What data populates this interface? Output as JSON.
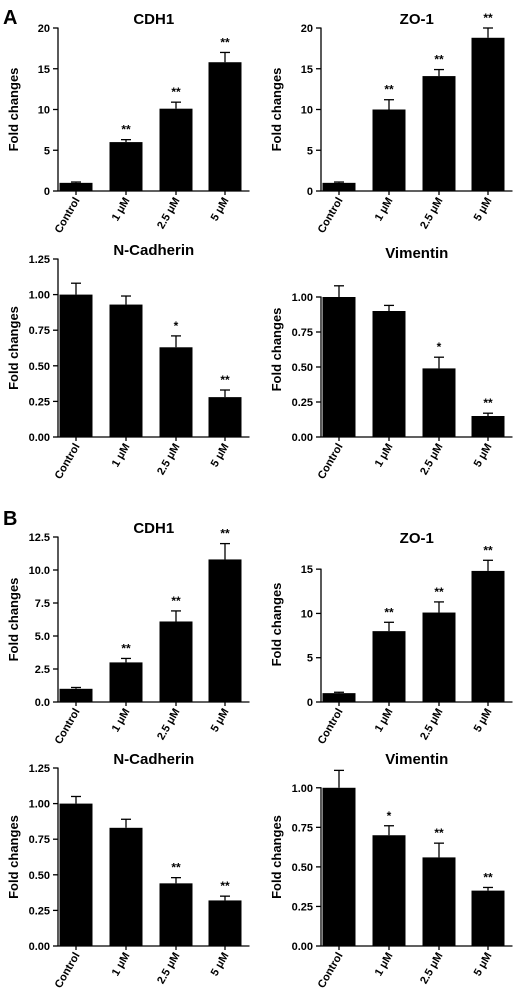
{
  "panels": [
    {
      "letter": "A"
    },
    {
      "letter": "B"
    }
  ],
  "chart_data": [
    {
      "type": "bar",
      "panel": "A",
      "title": "CDH1",
      "ylabel": "Fold changes",
      "categories": [
        "Control",
        "1 μM",
        "2.5 μM",
        "5 μM"
      ],
      "values": [
        1.0,
        6.0,
        10.1,
        15.8
      ],
      "errors": [
        0.1,
        0.3,
        0.8,
        1.2
      ],
      "significance": [
        "",
        "**",
        "**",
        "**"
      ],
      "ylim": [
        0,
        20
      ],
      "yticks": [
        "0",
        "5",
        "10",
        "15",
        "20"
      ]
    },
    {
      "type": "bar",
      "panel": "A",
      "title": "ZO-1",
      "ylabel": "Fold changes",
      "categories": [
        "Control",
        "1 μM",
        "2.5 μM",
        "5 μM"
      ],
      "values": [
        1.0,
        10.0,
        14.1,
        18.8
      ],
      "errors": [
        0.1,
        1.2,
        0.8,
        1.2
      ],
      "significance": [
        "",
        "**",
        "**",
        "**"
      ],
      "ylim": [
        0,
        20
      ],
      "yticks": [
        "0",
        "5",
        "10",
        "15",
        "20"
      ]
    },
    {
      "type": "bar",
      "panel": "A",
      "title": "N-Cadherin",
      "ylabel": "Fold changes",
      "categories": [
        "Control",
        "1 μM",
        "2.5 μM",
        "5 μM"
      ],
      "values": [
        1.0,
        0.93,
        0.63,
        0.28
      ],
      "errors": [
        0.08,
        0.06,
        0.08,
        0.05
      ],
      "significance": [
        "",
        "",
        "*",
        "**"
      ],
      "ylim": [
        0,
        1.25
      ],
      "yticks": [
        "0.00",
        "0.25",
        "0.50",
        "0.75",
        "1.00",
        "1.25"
      ]
    },
    {
      "type": "bar",
      "panel": "A",
      "title": "Vimentin",
      "ylabel": "Fold changes",
      "categories": [
        "Control",
        "1 μM",
        "2.5 μM",
        "5 μM"
      ],
      "values": [
        1.0,
        0.9,
        0.49,
        0.15
      ],
      "errors": [
        0.08,
        0.04,
        0.08,
        0.02
      ],
      "significance": [
        "",
        "",
        "*",
        "**"
      ],
      "ylim": [
        0,
        1.25
      ],
      "yticks": [
        "0.00",
        "0.25",
        "0.50",
        "0.75",
        "1.00"
      ]
    },
    {
      "type": "bar",
      "panel": "B",
      "title": "CDH1",
      "ylabel": "Fold changes",
      "categories": [
        "Control",
        "1 μM",
        "2.5 μM",
        "5 μM"
      ],
      "values": [
        1.0,
        3.0,
        6.1,
        10.8
      ],
      "errors": [
        0.1,
        0.3,
        0.8,
        1.2
      ],
      "significance": [
        "",
        "**",
        "**",
        "**"
      ],
      "ylim": [
        0,
        12.5
      ],
      "yticks": [
        "0.0",
        "2.5",
        "5.0",
        "7.5",
        "10.0",
        "12.5"
      ]
    },
    {
      "type": "bar",
      "panel": "B",
      "title": "ZO-1",
      "ylabel": "Fold changes",
      "categories": [
        "Control",
        "1 μM",
        "2.5 μM",
        "5 μM"
      ],
      "values": [
        1.0,
        8.0,
        10.1,
        14.8
      ],
      "errors": [
        0.1,
        1.0,
        1.2,
        1.2
      ],
      "significance": [
        "",
        "**",
        "**",
        "**"
      ],
      "ylim": [
        0,
        17.5
      ],
      "yticks": [
        "0",
        "5",
        "10",
        "15"
      ]
    },
    {
      "type": "bar",
      "panel": "B",
      "title": "N-Cadherin",
      "ylabel": "Fold changes",
      "categories": [
        "Control",
        "1 μM",
        "2.5 μM",
        "5 μM"
      ],
      "values": [
        1.0,
        0.83,
        0.44,
        0.32
      ],
      "errors": [
        0.05,
        0.06,
        0.04,
        0.03
      ],
      "significance": [
        "",
        "",
        "**",
        "**"
      ],
      "ylim": [
        0,
        1.25
      ],
      "yticks": [
        "0.00",
        "0.25",
        "0.50",
        "0.75",
        "1.00",
        "1.25"
      ]
    },
    {
      "type": "bar",
      "panel": "B",
      "title": "Vimentin",
      "ylabel": "Fold changes",
      "categories": [
        "Control",
        "1 μM",
        "2.5 μM",
        "5 μM"
      ],
      "values": [
        1.0,
        0.7,
        0.56,
        0.35
      ],
      "errors": [
        0.11,
        0.06,
        0.09,
        0.02
      ],
      "significance": [
        "",
        "*",
        "**",
        "**"
      ],
      "ylim": [
        0,
        1.125
      ],
      "yticks": [
        "0.00",
        "0.25",
        "0.50",
        "0.75",
        "1.00"
      ]
    }
  ]
}
